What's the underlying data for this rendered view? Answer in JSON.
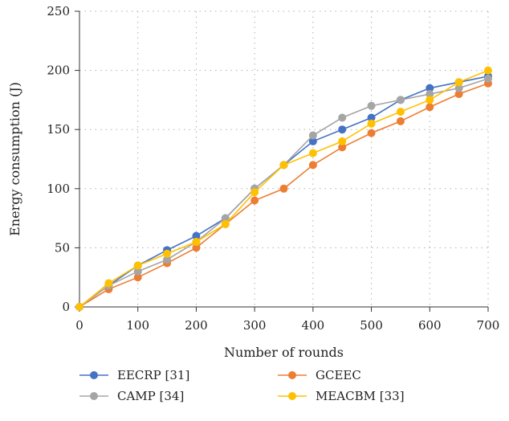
{
  "chart_data": {
    "type": "line",
    "title": "",
    "xlabel": "Number of rounds",
    "ylabel": "Energy consumption (J)",
    "x": [
      0,
      50,
      100,
      150,
      200,
      250,
      300,
      350,
      400,
      450,
      500,
      550,
      600,
      650,
      700
    ],
    "xlim": [
      0,
      700
    ],
    "ylim": [
      0,
      250
    ],
    "xticks": [
      0,
      100,
      200,
      300,
      400,
      500,
      600,
      700
    ],
    "yticks": [
      0,
      50,
      100,
      150,
      200,
      250
    ],
    "grid": "dotted",
    "legend_position": "bottom",
    "series": [
      {
        "name": "EECRP [31]",
        "color": "#4472C4",
        "values": [
          0,
          18,
          35,
          48,
          60,
          75,
          100,
          120,
          140,
          150,
          160,
          175,
          185,
          190,
          195
        ]
      },
      {
        "name": "GCEEC",
        "color": "#ED7D31",
        "values": [
          0,
          15,
          25,
          37,
          50,
          70,
          90,
          100,
          120,
          135,
          147,
          157,
          169,
          180,
          189
        ]
      },
      {
        "name": "CAMP [34]",
        "color": "#A5A5A5",
        "values": [
          0,
          18,
          30,
          40,
          55,
          75,
          100,
          120,
          145,
          160,
          170,
          175,
          180,
          185,
          193
        ]
      },
      {
        "name": "MEACBM [33]",
        "color": "#FFC000",
        "values": [
          0,
          20,
          35,
          45,
          55,
          70,
          97,
          120,
          130,
          140,
          155,
          165,
          175,
          190,
          200
        ]
      }
    ]
  }
}
